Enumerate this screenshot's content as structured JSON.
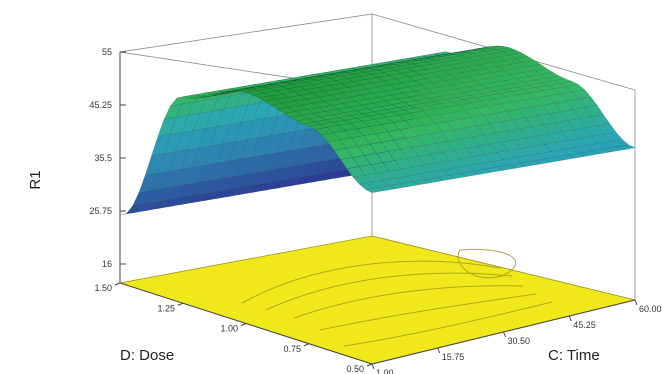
{
  "chart_data": {
    "type": "surface",
    "zlabel": "R1",
    "xlabel": "C: Time",
    "ylabel": "D: Dose",
    "z_ticks": [
      "16",
      "25.75",
      "35.5",
      "45.25",
      "55"
    ],
    "time_ticks": [
      "1.00",
      "15.75",
      "30.50",
      "45.25",
      "60.00"
    ],
    "dose_ticks": [
      "0.50",
      "0.75",
      "1.00",
      "1.25",
      "1.50"
    ],
    "time_range": [
      1.0,
      60.0
    ],
    "dose_range": [
      0.5,
      1.5
    ],
    "z_range": [
      16,
      55
    ],
    "response_profile": {
      "dose": [
        0.5,
        0.75,
        1.0,
        1.25,
        1.5
      ],
      "R1": [
        44.0,
        52.5,
        55.0,
        50.5,
        25.0
      ]
    },
    "grid": false,
    "colors": {
      "floor": "#f0e81a",
      "surface_low": "#2a2f8f",
      "surface_mid": "#2aa6b8",
      "surface_high": "#27b44a",
      "ridge_edge": "#101010"
    }
  }
}
